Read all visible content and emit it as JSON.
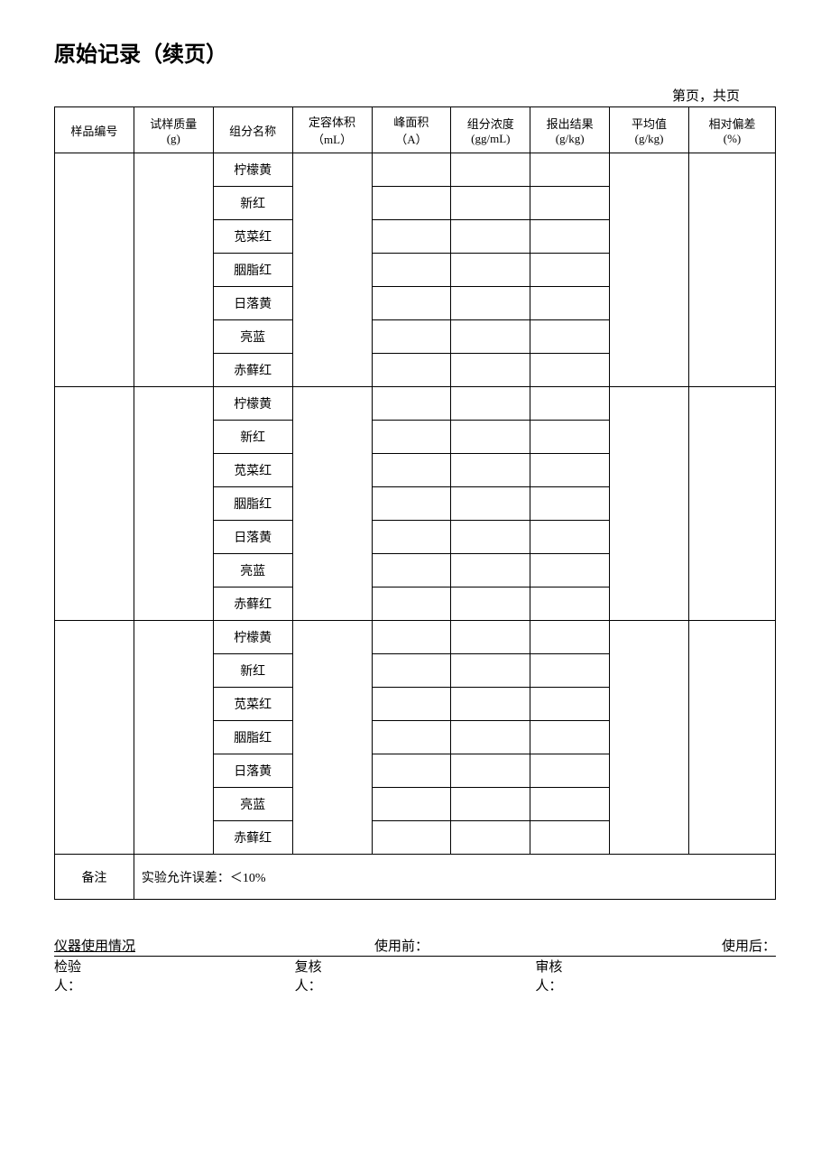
{
  "title": "原始记录（续页）",
  "page_info": "第页，共页",
  "columns": [
    {
      "line1": "样品编号",
      "line2": ""
    },
    {
      "line1": "试样质量",
      "line2": "(g)"
    },
    {
      "line1": "组分名称",
      "line2": ""
    },
    {
      "line1": "定容体积",
      "line2": "（mL）"
    },
    {
      "line1": "峰面积",
      "line2": "（A）"
    },
    {
      "line1": "组分浓度",
      "line2": "(gg/mL)"
    },
    {
      "line1": "报出结果",
      "line2": "(g/kg)"
    },
    {
      "line1": "平均值",
      "line2": "(g/kg)"
    },
    {
      "line1": "相对偏差",
      "line2": "(%)"
    }
  ],
  "components": [
    "柠檬黄",
    "新红",
    "苋菜红",
    "胭脂红",
    "日落黄",
    "亮蓝",
    "赤藓红"
  ],
  "group_count": 3,
  "remark": {
    "label": "备注",
    "content": "实验允许误差：＜10%"
  },
  "footer": {
    "instrument_label": "仪器使用情况",
    "before_label": "使用前：",
    "after_label": "使用后：",
    "inspector_label": "检验人：",
    "reviewer_label": "复核人：",
    "auditor_label": "审核人："
  },
  "style": {
    "background_color": "#ffffff",
    "border_color": "#000000",
    "text_color": "#000000",
    "title_fontsize": 24,
    "body_fontsize": 13
  }
}
